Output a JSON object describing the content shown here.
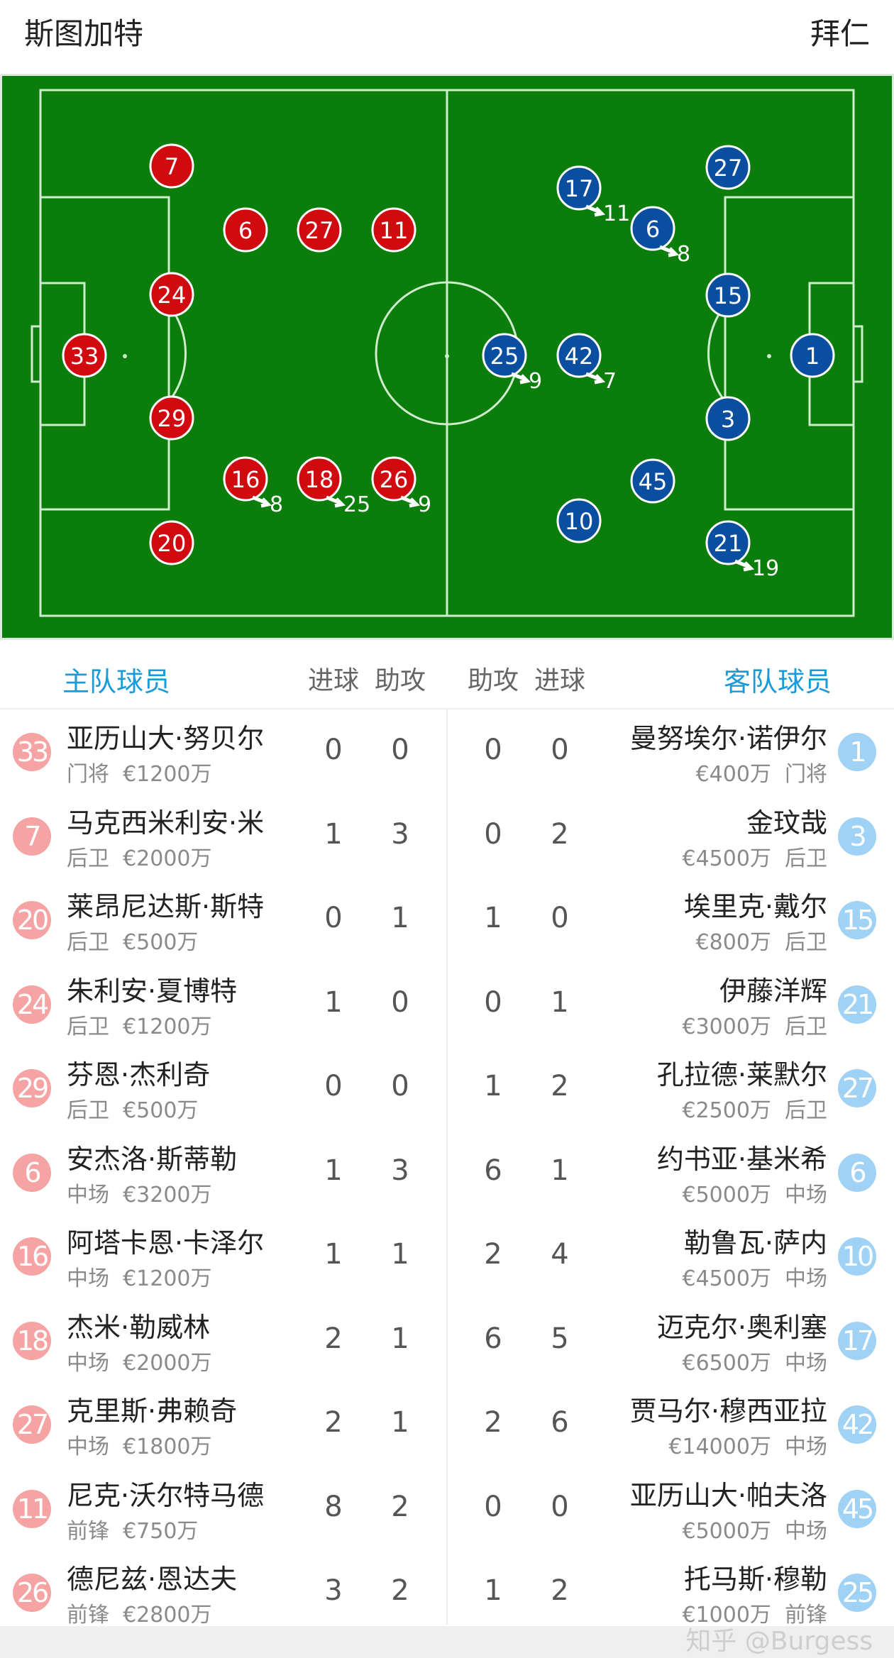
{
  "header": {
    "home_team": "斯图加特",
    "away_team": "拜仁"
  },
  "colors": {
    "pitch": "#0a7d0a",
    "home": "#d10a10",
    "away": "#0a4ea0",
    "home_badge": "#f6a3a3",
    "away_badge": "#9fd2f4",
    "accent": "#1b9ad8"
  },
  "pitch": {
    "home": [
      {
        "no": "7"
      },
      {
        "no": "6"
      },
      {
        "no": "27"
      },
      {
        "no": "11"
      },
      {
        "no": "24"
      },
      {
        "no": "33"
      },
      {
        "no": "29"
      },
      {
        "no": "16",
        "sub": "8"
      },
      {
        "no": "18",
        "sub": "25"
      },
      {
        "no": "26",
        "sub": "9"
      },
      {
        "no": "20"
      }
    ],
    "away": [
      {
        "no": "27"
      },
      {
        "no": "17",
        "sub": "11"
      },
      {
        "no": "6",
        "sub": "8"
      },
      {
        "no": "15"
      },
      {
        "no": "1"
      },
      {
        "no": "25",
        "sub": "9"
      },
      {
        "no": "42",
        "sub": "7"
      },
      {
        "no": "3"
      },
      {
        "no": "45"
      },
      {
        "no": "10"
      },
      {
        "no": "21",
        "sub": "19"
      }
    ]
  },
  "table_header": {
    "home": "主队球员",
    "goals": "进球",
    "assists": "助攻",
    "away": "客队球员"
  },
  "home_players": [
    {
      "no": "33",
      "name": "亚历山大·努贝尔",
      "pos": "门将",
      "value": "€1200万",
      "goals": "0",
      "assists": "0"
    },
    {
      "no": "7",
      "name": "马克西米利安·米",
      "pos": "后卫",
      "value": "€2000万",
      "goals": "1",
      "assists": "3"
    },
    {
      "no": "20",
      "name": "莱昂尼达斯·斯特",
      "pos": "后卫",
      "value": "€500万",
      "goals": "0",
      "assists": "1"
    },
    {
      "no": "24",
      "name": "朱利安·夏博特",
      "pos": "后卫",
      "value": "€1200万",
      "goals": "1",
      "assists": "0"
    },
    {
      "no": "29",
      "name": "芬恩·杰利奇",
      "pos": "后卫",
      "value": "€500万",
      "goals": "0",
      "assists": "0"
    },
    {
      "no": "6",
      "name": "安杰洛·斯蒂勒",
      "pos": "中场",
      "value": "€3200万",
      "goals": "1",
      "assists": "3"
    },
    {
      "no": "16",
      "name": "阿塔卡恩·卡泽尔",
      "pos": "中场",
      "value": "€1200万",
      "goals": "1",
      "assists": "1"
    },
    {
      "no": "18",
      "name": "杰米·勒威林",
      "pos": "中场",
      "value": "€2000万",
      "goals": "2",
      "assists": "1"
    },
    {
      "no": "27",
      "name": "克里斯·弗赖奇",
      "pos": "中场",
      "value": "€1800万",
      "goals": "2",
      "assists": "1"
    },
    {
      "no": "11",
      "name": "尼克·沃尔特马德",
      "pos": "前锋",
      "value": "€750万",
      "goals": "8",
      "assists": "2"
    },
    {
      "no": "26",
      "name": "德尼兹·恩达夫",
      "pos": "前锋",
      "value": "€2800万",
      "goals": "3",
      "assists": "2"
    }
  ],
  "away_players": [
    {
      "no": "1",
      "name": "曼努埃尔·诺伊尔",
      "pos": "门将",
      "value": "€400万",
      "goals": "0",
      "assists": "0"
    },
    {
      "no": "3",
      "name": "金玟哉",
      "pos": "后卫",
      "value": "€4500万",
      "goals": "2",
      "assists": "0"
    },
    {
      "no": "15",
      "name": "埃里克·戴尔",
      "pos": "后卫",
      "value": "€800万",
      "goals": "0",
      "assists": "1"
    },
    {
      "no": "21",
      "name": "伊藤洋辉",
      "pos": "后卫",
      "value": "€3000万",
      "goals": "1",
      "assists": "0"
    },
    {
      "no": "27",
      "name": "孔拉德·莱默尔",
      "pos": "后卫",
      "value": "€2500万",
      "goals": "2",
      "assists": "1"
    },
    {
      "no": "6",
      "name": "约书亚·基米希",
      "pos": "中场",
      "value": "€5000万",
      "goals": "1",
      "assists": "6"
    },
    {
      "no": "10",
      "name": "勒鲁瓦·萨内",
      "pos": "中场",
      "value": "€4500万",
      "goals": "4",
      "assists": "2"
    },
    {
      "no": "17",
      "name": "迈克尔·奥利塞",
      "pos": "中场",
      "value": "€6500万",
      "goals": "5",
      "assists": "6"
    },
    {
      "no": "42",
      "name": "贾马尔·穆西亚拉",
      "pos": "中场",
      "value": "€14000万",
      "goals": "6",
      "assists": "2"
    },
    {
      "no": "45",
      "name": "亚历山大·帕夫洛",
      "pos": "中场",
      "value": "€5000万",
      "goals": "0",
      "assists": "0"
    },
    {
      "no": "25",
      "name": "托马斯·穆勒",
      "pos": "前锋",
      "value": "€1000万",
      "goals": "2",
      "assists": "1"
    }
  ],
  "watermark": "知乎 @Burgess"
}
